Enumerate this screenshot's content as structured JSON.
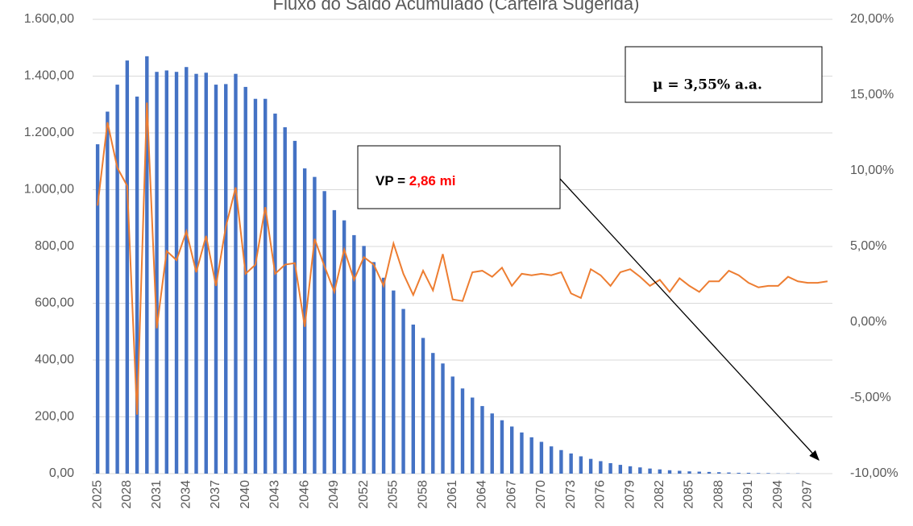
{
  "chart_data": {
    "type": "combo",
    "title": "Fluxo do Saldo Acumulado (Carteira Sugerida)",
    "categories": [
      "2025",
      null,
      null,
      "2028",
      null,
      null,
      "2031",
      null,
      null,
      "2034",
      null,
      null,
      "2037",
      null,
      null,
      "2040",
      null,
      null,
      "2043",
      null,
      null,
      "2046",
      null,
      null,
      "2049",
      null,
      null,
      "2052",
      null,
      null,
      "2055",
      null,
      null,
      "2058",
      null,
      null,
      "2061",
      null,
      null,
      "2064",
      null,
      null,
      "2067",
      null,
      null,
      "2070",
      null,
      null,
      "2073",
      null,
      null,
      "2076",
      null,
      null,
      "2079",
      null,
      null,
      "2082",
      null,
      null,
      "2085",
      null,
      null,
      "2088",
      null,
      null,
      "2091",
      null,
      null,
      "2094",
      null,
      null,
      "2097",
      null,
      null
    ],
    "series": [
      {
        "type": "bar",
        "color": "#4472c4",
        "values": [
          1160,
          1275,
          1370,
          1455,
          1328,
          1470,
          1415,
          1420,
          1415,
          1432,
          1408,
          1412,
          1370,
          1372,
          1408,
          1362,
          1320,
          1320,
          1268,
          1220,
          1172,
          1075,
          1045,
          995,
          928,
          892,
          840,
          802,
          745,
          690,
          645,
          580,
          525,
          478,
          425,
          388,
          342,
          300,
          268,
          238,
          212,
          188,
          166,
          145,
          128,
          112,
          96,
          83,
          71,
          61,
          52,
          44,
          37,
          31,
          26,
          22,
          18,
          15,
          12,
          10,
          8,
          7,
          6,
          5,
          4,
          3,
          3,
          2,
          2,
          1,
          1,
          1,
          0,
          0,
          0
        ]
      },
      {
        "type": "line",
        "color": "#ed7d31",
        "axis": "y2",
        "values": [
          7.7,
          13.2,
          10.2,
          9.0,
          -6.1,
          14.5,
          -0.4,
          4.7,
          4.1,
          6.0,
          3.3,
          5.7,
          2.4,
          6.3,
          8.9,
          3.2,
          3.8,
          7.6,
          3.2,
          3.8,
          3.9,
          -0.3,
          5.5,
          3.7,
          2.0,
          4.8,
          2.8,
          4.3,
          3.8,
          2.4,
          5.2,
          3.2,
          1.8,
          3.4,
          2.1,
          4.5,
          1.5,
          1.4,
          3.3,
          3.4,
          3.0,
          3.6,
          2.4,
          3.2,
          3.1,
          3.2,
          3.1,
          3.3,
          1.9,
          1.6,
          3.5,
          3.1,
          2.4,
          3.3,
          3.5,
          3.0,
          2.4,
          2.8,
          2.0,
          2.9,
          2.4,
          2.0,
          2.7,
          2.7,
          3.4,
          3.1,
          2.6,
          2.3,
          2.4,
          2.4,
          3.0,
          2.7,
          2.6,
          2.6,
          2.7
        ]
      }
    ],
    "ylim": [
      0,
      1600
    ],
    "yticks": [
      {
        "value": 0,
        "label": "0,00"
      },
      {
        "value": 200,
        "label": "200,00"
      },
      {
        "value": 400,
        "label": "400,00"
      },
      {
        "value": 600,
        "label": "600,00"
      },
      {
        "value": 800,
        "label": "800,00"
      },
      {
        "value": 1000,
        "label": "1.000,00"
      },
      {
        "value": 1200,
        "label": "1.200,00"
      },
      {
        "value": 1400,
        "label": "1.400,00"
      },
      {
        "value": 1600,
        "label": "1.600,00"
      }
    ],
    "y2lim": [
      -10,
      20
    ],
    "y2ticks": [
      {
        "value": -10,
        "label": "-10,00%"
      },
      {
        "value": -5,
        "label": "-5,00%"
      },
      {
        "value": 0,
        "label": "0,00%"
      },
      {
        "value": 5,
        "label": "5,00%"
      },
      {
        "value": 10,
        "label": "10,00%"
      },
      {
        "value": 15,
        "label": "15,00%"
      },
      {
        "value": 20,
        "label": "20,00%"
      }
    ],
    "grid": true,
    "annotations": {
      "mu": "μ = 3,55% a.a.",
      "vp_label": "VP =",
      "vp_value": "2,86 mi"
    }
  }
}
